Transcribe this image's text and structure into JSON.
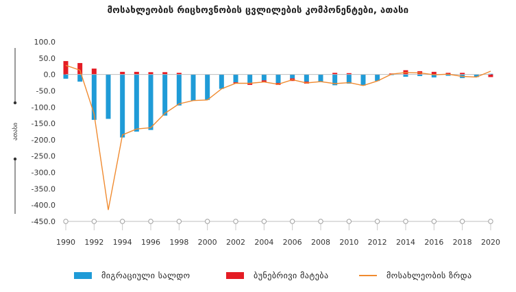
{
  "chart_data": {
    "type": "bar",
    "title": "მოსახლეობის რიცხოვნობის ცვლილების კომპონენტები, ათასი",
    "ylabel": "ათასი",
    "ylim": [
      -450,
      100
    ],
    "yticks": [
      "100.0",
      "50.0",
      "0.0",
      "-50.0",
      "-100.0",
      "-150.0",
      "-200.0",
      "-250.0",
      "-300.0",
      "-350.0",
      "-400.0",
      "-450.0"
    ],
    "ytick_values": [
      100,
      50,
      0,
      -50,
      -100,
      -150,
      -200,
      -250,
      -300,
      -350,
      -400,
      -450
    ],
    "x": [
      1990,
      1991,
      1992,
      1993,
      1994,
      1995,
      1996,
      1997,
      1998,
      1999,
      2000,
      2001,
      2002,
      2003,
      2004,
      2005,
      2006,
      2007,
      2008,
      2009,
      2010,
      2011,
      2012,
      2013,
      2014,
      2015,
      2016,
      2017,
      2018,
      2019,
      2020
    ],
    "xtick_labels": [
      "1990",
      "1992",
      "1994",
      "1996",
      "1998",
      "2000",
      "2002",
      "2004",
      "2006",
      "2008",
      "2010",
      "2012",
      "2014",
      "2016",
      "2018",
      "2020"
    ],
    "stacked": true,
    "grid": false,
    "legend_position": "bottom",
    "series": [
      {
        "name": "მიგრაციული სალდო",
        "type": "bar",
        "color": "#1f9bd7",
        "values": [
          -13,
          -22,
          -139,
          -136,
          -193,
          -175,
          -170,
          -126,
          -95,
          -80,
          -78,
          -44,
          -24,
          -27,
          -18,
          -26,
          -12,
          -22,
          -22,
          -33,
          -28,
          -34,
          -20,
          -2,
          -7,
          -5,
          -9,
          -4,
          -11,
          -8,
          2
        ]
      },
      {
        "name": "ბუნებრივი მატება",
        "type": "bar",
        "color": "#e41c24",
        "values": [
          41,
          35,
          18,
          0,
          8,
          8,
          7,
          7,
          5,
          0,
          0,
          0,
          -3,
          -5,
          -5,
          -6,
          -8,
          -6,
          0,
          5,
          4,
          0,
          0,
          3,
          13,
          10,
          8,
          5,
          5,
          0,
          -8
        ]
      },
      {
        "name": "მოსახლეობის ზრდა",
        "type": "line",
        "color": "#f08a2f",
        "values": [
          28,
          13,
          -121,
          -415,
          -185,
          -167,
          -163,
          -119,
          -90,
          -80,
          -78,
          -44,
          -27,
          -27,
          -23,
          -30,
          -16,
          -26,
          -22,
          -28,
          -25,
          -34,
          -20,
          1,
          6,
          5,
          -1,
          1,
          -6,
          -8,
          10
        ]
      }
    ]
  }
}
